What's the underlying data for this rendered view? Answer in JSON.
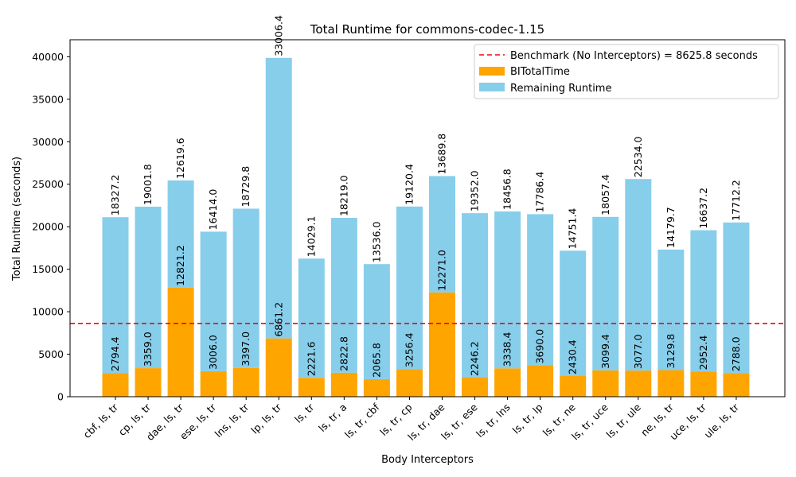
{
  "chart_data": {
    "type": "bar",
    "stacked": true,
    "title": "Total Runtime for commons-codec-1.15",
    "xlabel": "Body Interceptors",
    "ylabel": "Total Runtime (seconds)",
    "ylim": [
      0,
      42000
    ],
    "yticks": [
      0,
      5000,
      10000,
      15000,
      20000,
      25000,
      30000,
      35000,
      40000
    ],
    "grid": false,
    "legend_position": "upper right",
    "categories": [
      "cbf, ls, tr",
      "cp, ls, tr",
      "dae, ls, tr",
      "ese, ls, tr",
      "lns, ls, tr",
      "lp, ls, tr",
      "ls, tr",
      "ls, tr, a",
      "ls, tr, cbf",
      "ls, tr, cp",
      "ls, tr, dae",
      "ls, tr, ese",
      "ls, tr, lns",
      "ls, tr, lp",
      "ls, tr, ne",
      "ls, tr, uce",
      "ls, tr, ule",
      "ne, ls, tr",
      "uce, ls, tr",
      "ule, ls, tr"
    ],
    "series": [
      {
        "name": "BITotalTime",
        "color": "#ffa500",
        "values": [
          2794.4,
          3359.0,
          12821.2,
          3006.0,
          3397.0,
          6861.2,
          2221.6,
          2822.8,
          2065.8,
          3256.4,
          12271.0,
          2246.2,
          3338.4,
          3690.0,
          2430.4,
          3099.4,
          3077.0,
          3129.8,
          2952.4,
          2788.0
        ],
        "labels": [
          "2794.4",
          "3359.0",
          "12821.2",
          "3006.0",
          "3397.0",
          "6861.2",
          "2221.6",
          "2822.8",
          "2065.8",
          "3256.4",
          "12271.0",
          "2246.2",
          "3338.4",
          "3690.0",
          "2430.4",
          "3099.4",
          "3077.0",
          "3129.8",
          "2952.4",
          "2788.0"
        ]
      },
      {
        "name": "Remaining Runtime",
        "color": "#87ceeb",
        "values": [
          18327.2,
          19001.8,
          12619.6,
          16414.0,
          18729.8,
          33006.4,
          14029.1,
          18219.0,
          13536.0,
          19120.4,
          13689.8,
          19352.0,
          18456.8,
          17786.4,
          14751.4,
          18057.4,
          22534.0,
          14179.7,
          16637.2,
          17712.2
        ],
        "labels": [
          "18327.2",
          "19001.8",
          "12619.6",
          "16414.0",
          "18729.8",
          "33006.4",
          "14029.1",
          "18219.0",
          "13536.0",
          "19120.4",
          "13689.8",
          "19352.0",
          "18456.8",
          "17786.4",
          "14751.4",
          "18057.4",
          "22534.0",
          "14179.7",
          "16637.2",
          "17712.2"
        ]
      }
    ],
    "benchmark": {
      "value": 8625.8,
      "label": "Benchmark (No Interceptors) = 8625.8 seconds",
      "color": "#ff0000"
    }
  }
}
